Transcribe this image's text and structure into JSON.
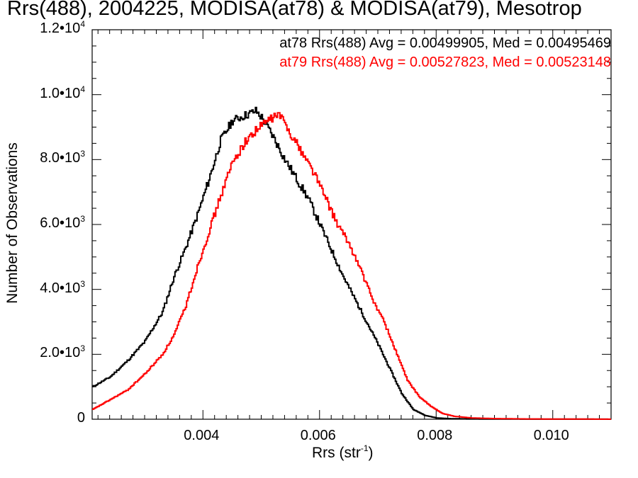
{
  "title": "Rrs(488), 2004225, MODISA(at78) & MODISA(at79), Mesotrop",
  "legend": {
    "at78": "at78 Rrs(488) Avg = 0.00499905, Med = 0.00495469",
    "at79": "at79 Rrs(488) Avg = 0.00527823, Med = 0.00523148"
  },
  "axes": {
    "xlabel": "Rrs (str",
    "xlabel_sup": "-1",
    "xlabel_close": ")",
    "ylabel": "Number of Observations"
  },
  "ticks": {
    "y": [
      {
        "mant": "0",
        "sup": ""
      },
      {
        "mant": "2.0•10",
        "sup": "3"
      },
      {
        "mant": "4.0•10",
        "sup": "3"
      },
      {
        "mant": "6.0•10",
        "sup": "3"
      },
      {
        "mant": "8.0•10",
        "sup": "3"
      },
      {
        "mant": "1.0•10",
        "sup": "4"
      },
      {
        "mant": "1.2•10",
        "sup": "4"
      }
    ],
    "x": [
      "0.004",
      "0.006",
      "0.008",
      "0.010"
    ]
  },
  "chart_data": {
    "type": "line",
    "xlim": [
      0.0021,
      0.011
    ],
    "ylim": [
      0,
      12000
    ],
    "grid": false,
    "legend_position": "top-right",
    "series": [
      {
        "name": "at78",
        "color": "#000000",
        "x": [
          0.0021,
          0.0024,
          0.0027,
          0.003,
          0.0033,
          0.0035,
          0.0037,
          0.0039,
          0.0041,
          0.0043,
          0.0045,
          0.0047,
          0.0049,
          0.005,
          0.0052,
          0.0054,
          0.0056,
          0.0058,
          0.006,
          0.0062,
          0.0064,
          0.0066,
          0.0068,
          0.007,
          0.0072,
          0.0074,
          0.0076,
          0.0078,
          0.008,
          0.0082,
          0.0085,
          0.009,
          0.0095,
          0.01,
          0.011
        ],
        "y": [
          1000,
          1300,
          1800,
          2400,
          3300,
          4400,
          5300,
          6300,
          7400,
          8600,
          9200,
          9350,
          9500,
          9300,
          8700,
          8000,
          7400,
          6800,
          6000,
          5200,
          4400,
          3700,
          3000,
          2300,
          1550,
          800,
          300,
          120,
          40,
          20,
          10,
          5,
          3,
          2,
          1
        ]
      },
      {
        "name": "at79",
        "color": "#ff0000",
        "x": [
          0.0021,
          0.0024,
          0.0027,
          0.003,
          0.0033,
          0.0035,
          0.0037,
          0.0039,
          0.0041,
          0.0043,
          0.0045,
          0.0047,
          0.0049,
          0.0051,
          0.0053,
          0.0055,
          0.0057,
          0.0059,
          0.0061,
          0.0063,
          0.0065,
          0.0067,
          0.0069,
          0.0071,
          0.0073,
          0.0075,
          0.0077,
          0.0079,
          0.0081,
          0.0083,
          0.0086,
          0.009,
          0.0095,
          0.01,
          0.011
        ],
        "y": [
          300,
          600,
          900,
          1400,
          2000,
          2600,
          3500,
          4700,
          5800,
          6900,
          7900,
          8500,
          8900,
          9200,
          9400,
          8800,
          8200,
          7600,
          6800,
          6000,
          5400,
          4600,
          3700,
          3000,
          2100,
          1200,
          700,
          400,
          180,
          90,
          40,
          20,
          10,
          6,
          2
        ]
      }
    ]
  }
}
